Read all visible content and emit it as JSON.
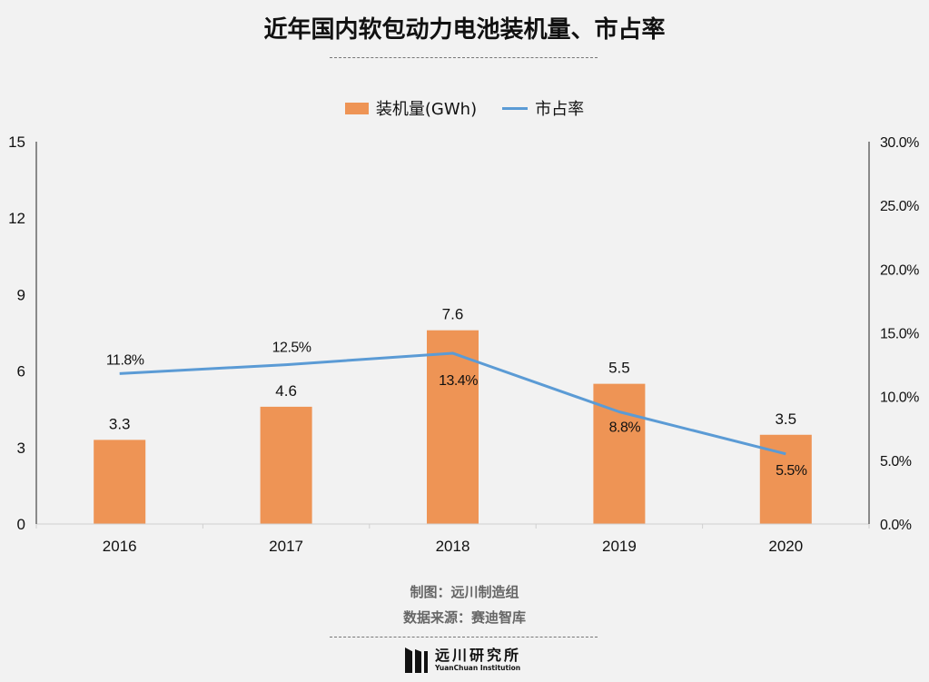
{
  "title": "近年国内软包动力电池装机量、市占率",
  "legend": {
    "bar_label": "装机量(GWh)",
    "line_label": "市占率"
  },
  "footer": {
    "credit": "制图：远川制造组",
    "source": "数据来源：赛迪智库"
  },
  "logo": {
    "name_cn": "远川研究所",
    "name_en": "YuanChuan Institution"
  },
  "colors": {
    "bar": "#ee9455",
    "line": "#5b9bd5",
    "background": "#f2f2f2"
  },
  "chart_data": {
    "type": "bar",
    "title": "近年国内软包动力电池装机量、市占率",
    "categories": [
      "2016",
      "2017",
      "2018",
      "2019",
      "2020"
    ],
    "series": [
      {
        "name": "装机量(GWh)",
        "type": "bar",
        "axis": "left",
        "values": [
          3.3,
          4.6,
          7.6,
          5.5,
          3.5
        ],
        "labels": [
          "3.3",
          "4.6",
          "7.6",
          "5.5",
          "3.5"
        ]
      },
      {
        "name": "市占率",
        "type": "line",
        "axis": "right",
        "values": [
          11.8,
          12.5,
          13.4,
          8.8,
          5.5
        ],
        "labels": [
          "11.8%",
          "12.5%",
          "13.4%",
          "8.8%",
          "5.5%"
        ]
      }
    ],
    "y_left": {
      "range": [
        0,
        15
      ],
      "ticks": [
        0,
        3,
        6,
        9,
        12,
        15
      ],
      "tick_labels": [
        "0",
        "3",
        "6",
        "9",
        "12",
        "15"
      ]
    },
    "y_right": {
      "range": [
        0,
        30
      ],
      "ticks": [
        0,
        5,
        10,
        15,
        20,
        25,
        30
      ],
      "tick_labels": [
        "0.0%",
        "5.0%",
        "10.0%",
        "15.0%",
        "20.0%",
        "25.0%",
        "30.0%"
      ]
    },
    "grid": false,
    "legend_position": "top-center"
  }
}
